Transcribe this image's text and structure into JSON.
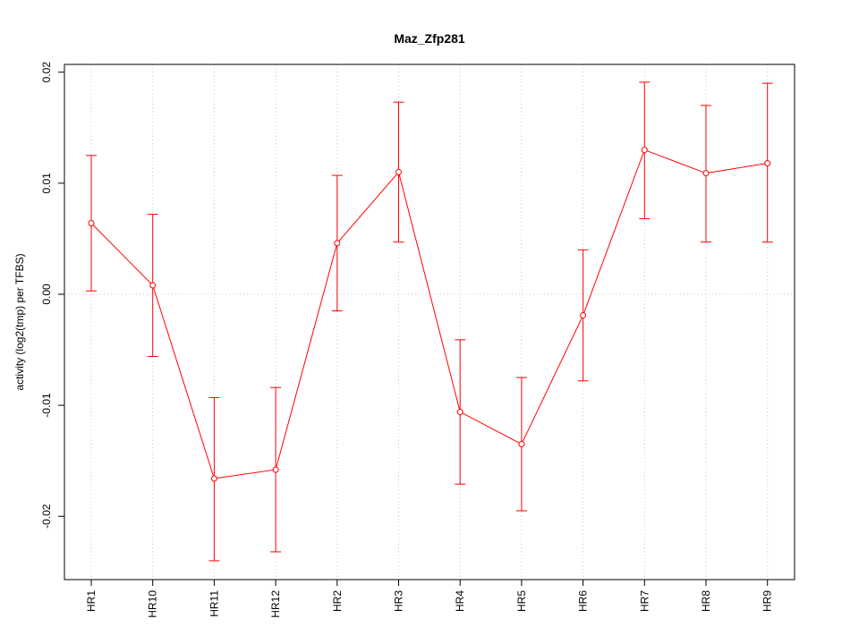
{
  "chart_data": {
    "type": "line",
    "title": "Maz_Zfp281",
    "xlabel": "",
    "ylabel": "activity (log2(tmp) per TFBS)",
    "categories": [
      "HR1",
      "HR10",
      "HR11",
      "HR12",
      "HR2",
      "HR3",
      "HR4",
      "HR5",
      "HR6",
      "HR7",
      "HR8",
      "HR9"
    ],
    "series": [
      {
        "values": [
          0.0064,
          0.0008,
          -0.0166,
          -0.0158,
          0.0046,
          0.011,
          -0.0106,
          -0.0135,
          -0.0019,
          0.013,
          0.0109,
          0.0118
        ],
        "upper": [
          0.0125,
          0.0072,
          -0.0093,
          -0.0084,
          0.0107,
          0.0173,
          -0.0041,
          -0.0075,
          0.004,
          0.0191,
          0.017,
          0.019
        ],
        "lower": [
          0.0003,
          -0.0056,
          -0.024,
          -0.0232,
          -0.0015,
          0.0047,
          -0.0171,
          -0.0195,
          -0.0078,
          0.0068,
          0.0047,
          0.0047
        ]
      }
    ],
    "yticks": [
      -0.02,
      -0.01,
      0.0,
      0.01,
      0.02
    ],
    "ytick_labels": [
      "-0.02",
      "-0.01",
      "0.00",
      "0.01",
      "0.02"
    ],
    "ylim": [
      -0.0257,
      0.0207
    ],
    "grid": true,
    "colors": {
      "series": "#ff0000",
      "grid": "#c8c8c8",
      "axis": "#000000"
    }
  }
}
